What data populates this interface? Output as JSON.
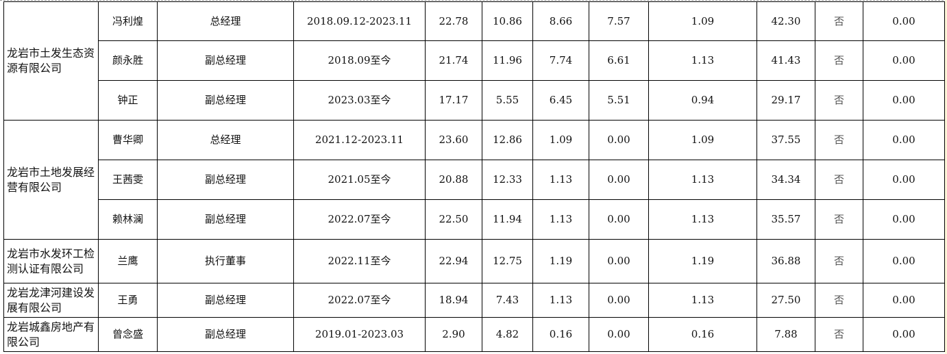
{
  "groups": [
    {
      "company": "龙岩市土发生态资源有限公司",
      "rows": [
        [
          "冯利煌",
          "总经理",
          "2018.09.12-2023.11",
          "22.78",
          "10.86",
          "8.66",
          "7.57",
          "1.09",
          "42.30",
          "否",
          "0.00"
        ],
        [
          "颜永胜",
          "副总经理",
          "2018.09至今",
          "21.74",
          "11.96",
          "7.74",
          "6.61",
          "1.13",
          "41.43",
          "否",
          "0.00"
        ],
        [
          "钟正",
          "副总经理",
          "2023.03至今",
          "17.17",
          "5.55",
          "6.45",
          "5.51",
          "0.94",
          "29.17",
          "否",
          "0.00"
        ]
      ]
    },
    {
      "company": "龙岩市土地发展经营有限公司",
      "rows": [
        [
          "曹华卿",
          "总经理",
          "2021.12-2023.11",
          "23.60",
          "12.86",
          "1.09",
          "0.00",
          "1.09",
          "37.55",
          "否",
          "0.00"
        ],
        [
          "王茜雯",
          "副总经理",
          "2021.05至今",
          "20.88",
          "12.33",
          "1.13",
          "0.00",
          "1.13",
          "34.34",
          "否",
          "0.00"
        ],
        [
          "赖林澜",
          "副总经理",
          "2022.07至今",
          "22.50",
          "11.94",
          "1.13",
          "0.00",
          "1.13",
          "35.57",
          "否",
          "0.00"
        ]
      ]
    },
    {
      "company": "龙岩市水发环工检测认证有限公司",
      "rows": [
        [
          "兰鹰",
          "执行董事",
          "2022.11至今",
          "22.94",
          "12.75",
          "1.19",
          "0.00",
          "1.19",
          "36.88",
          "否",
          "0.00"
        ]
      ]
    },
    {
      "company": "龙岩龙津河建设发展有限公司",
      "rows": [
        [
          "王勇",
          "副总经理",
          "2022.07至今",
          "18.94",
          "7.43",
          "1.13",
          "0.00",
          "1.13",
          "27.50",
          "否",
          "0.00"
        ]
      ]
    },
    {
      "company": "龙岩城鑫房地产有限公司",
      "rows": [
        [
          "曾念盛",
          "副总经理",
          "2019.01-2023.03",
          "2.90",
          "4.82",
          "0.16",
          "0.00",
          "0.16",
          "7.88",
          "否",
          "0.00"
        ]
      ]
    }
  ]
}
